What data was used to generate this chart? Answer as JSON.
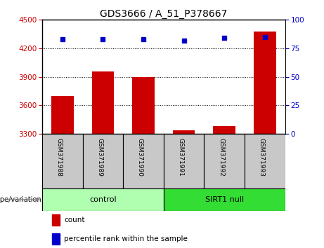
{
  "title": "GDS3666 / A_51_P378667",
  "samples": [
    "GSM371988",
    "GSM371989",
    "GSM371990",
    "GSM371991",
    "GSM371992",
    "GSM371993"
  ],
  "bar_values": [
    3700,
    3960,
    3900,
    3340,
    3380,
    4380
  ],
  "percentile_values": [
    83,
    83,
    83,
    82,
    84,
    85
  ],
  "bar_color": "#cc0000",
  "dot_color": "#0000cc",
  "ylim_left": [
    3300,
    4500
  ],
  "ylim_right": [
    0,
    100
  ],
  "yticks_left": [
    3300,
    3600,
    3900,
    4200,
    4500
  ],
  "yticks_right": [
    0,
    25,
    50,
    75,
    100
  ],
  "group_label": "genotype/variation",
  "legend_count_label": "count",
  "legend_pct_label": "percentile rank within the sample",
  "background_color": "#ffffff",
  "plot_bg_color": "#ffffff",
  "tick_label_color_left": "#cc0000",
  "tick_label_color_right": "#0000cc",
  "xlabel_area_color": "#c8c8c8",
  "control_label": "control",
  "sirt1_label": "SIRT1 null",
  "control_color": "#b0ffb0",
  "sirt1_color": "#33dd33",
  "bar_width": 0.55
}
